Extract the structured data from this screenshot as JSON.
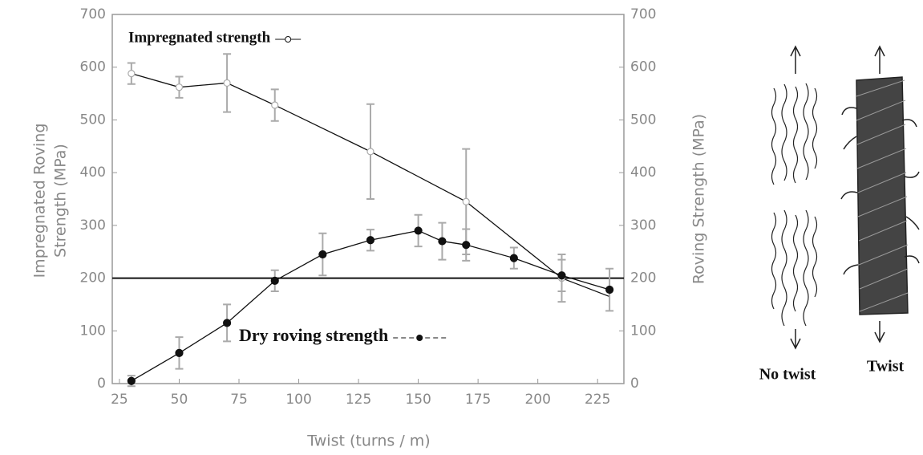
{
  "chart_data": {
    "type": "line",
    "xlabel": "Twist (turns / m)",
    "ylabel": [
      "Impregnated Roving",
      "Strength (MPa)"
    ],
    "y2label": "Roving Strength (MPa)",
    "xlim": [
      22,
      236
    ],
    "xticks": [
      25,
      50,
      75,
      100,
      125,
      150,
      175,
      200,
      225
    ],
    "ylim": [
      0,
      700
    ],
    "yticks": [
      0,
      100,
      200,
      300,
      400,
      500,
      600,
      700
    ],
    "y2lim": [
      0,
      700
    ],
    "y2ticks": [
      0,
      100,
      200,
      300,
      400,
      500,
      600,
      700
    ],
    "reference_line": 200,
    "series": [
      {
        "name": "Impregnated strength",
        "color": "#111111",
        "marker": "hollow",
        "x": [
          30,
          50,
          70,
          90,
          130,
          170,
          210,
          230
        ],
        "values": [
          588,
          562,
          570,
          528,
          440,
          345,
          200,
          165
        ],
        "errors": [
          20,
          20,
          55,
          30,
          90,
          100,
          45,
          null
        ]
      },
      {
        "name": "Dry roving strength",
        "color": "#111111",
        "marker": "filled",
        "axis": "y2",
        "x": [
          30,
          50,
          70,
          90,
          110,
          130,
          150,
          160,
          170,
          190,
          210,
          230
        ],
        "values": [
          5,
          58,
          115,
          195,
          245,
          272,
          290,
          270,
          263,
          238,
          205,
          178
        ],
        "errors": [
          10,
          30,
          35,
          20,
          40,
          20,
          30,
          35,
          30,
          20,
          30,
          40
        ]
      }
    ]
  },
  "diagram": {
    "labels": [
      "No twist",
      "Twist"
    ]
  }
}
